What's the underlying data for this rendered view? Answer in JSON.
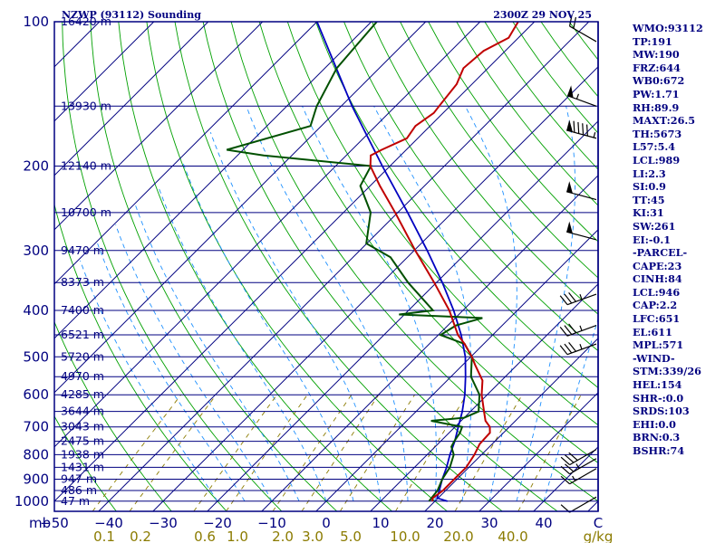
{
  "header": {
    "station": "NZWP (93112) Sounding",
    "time": "2300Z 29 NOV 25"
  },
  "indices": [
    "WMO:93112",
    "TP:191",
    "MW:190",
    "FRZ:644",
    "WB0:672",
    "PW:1.71",
    "RH:89.9",
    "MAXT:26.5",
    "TH:5673",
    "L57:5.4",
    "LCL:989",
    "LI:2.3",
    "SI:0.9",
    "TT:45",
    "KI:31",
    "SW:261",
    "EI:-0.1",
    "-PARCEL-",
    "CAPE:23",
    "CINH:84",
    "LCL:946",
    "CAP:2.2",
    "LFC:651",
    "EL:611",
    "MPL:571",
    "-WIND-",
    "STM:339/26",
    "HEL:154",
    "SHR-:0.0",
    "SRDS:103",
    "EHI:0.0",
    "BRN:0.3",
    "BSHR:74"
  ],
  "colors": {
    "frame": "#000080",
    "isobar": "#000080",
    "isotherm": "#000080",
    "dry_adiabat": "#00a000",
    "moist_adiabat": "#1e90ff",
    "mixing_ratio": "#8b7b00",
    "temperature": "#c00000",
    "dewpoint": "#005000",
    "parcel": "#0000c0",
    "barb": "#000000"
  },
  "chart_data": {
    "type": "skew-t log-p sounding",
    "title": "NZWP (93112) Sounding 2300Z 29 NOV 25",
    "pressure_unit": "mb",
    "temperature_unit": "C",
    "mixing_ratio_unit": "g/kg",
    "p_top": 100,
    "p_bottom": 1050,
    "t_range": [
      -50,
      50
    ],
    "pressure_labels": [
      100,
      200,
      300,
      400,
      500,
      600,
      700,
      800,
      900,
      1000
    ],
    "temperature_ticks": [
      -50,
      -40,
      -30,
      -20,
      -10,
      0,
      10,
      20,
      30,
      40,
      50
    ],
    "temperature_tick_labels": [
      "−50",
      "−40",
      "−30",
      "−20",
      "−10",
      "0",
      "10",
      "20",
      "30",
      "40",
      "C"
    ],
    "xlabel_left": "mb",
    "mixing_ratio_labels": [
      "0.1",
      "0.2",
      "0.6",
      "1.0",
      "2.0",
      "3.0",
      "5.0",
      "10.0",
      "20.0",
      "40.0",
      "g/kg"
    ],
    "mixing_ratio_values": [
      0.1,
      0.2,
      0.6,
      1.0,
      2.0,
      3.0,
      5.0,
      10.0,
      20.0,
      40.0
    ],
    "heights": [
      {
        "p": 100,
        "label": "16420 m"
      },
      {
        "p": 150,
        "label": "13930 m"
      },
      {
        "p": 200,
        "label": "12140 m"
      },
      {
        "p": 250,
        "label": "10700 m"
      },
      {
        "p": 300,
        "label": "9470 m"
      },
      {
        "p": 350,
        "label": "8373 m"
      },
      {
        "p": 400,
        "label": "7400 m"
      },
      {
        "p": 450,
        "label": "6521 m"
      },
      {
        "p": 500,
        "label": "5720 m"
      },
      {
        "p": 550,
        "label": "4970 m"
      },
      {
        "p": 600,
        "label": "4285 m"
      },
      {
        "p": 650,
        "label": "3644 m"
      },
      {
        "p": 700,
        "label": "3043 m"
      },
      {
        "p": 750,
        "label": "2475 m"
      },
      {
        "p": 800,
        "label": "1938 m"
      },
      {
        "p": 850,
        "label": "1431 m"
      },
      {
        "p": 900,
        "label": "947 m"
      },
      {
        "p": 950,
        "label": "486 m"
      },
      {
        "p": 1000,
        "label": "47 m"
      }
    ],
    "temperature_profile": [
      {
        "p": 1000,
        "t": 19.5
      },
      {
        "p": 985,
        "t": 19.0
      },
      {
        "p": 950,
        "t": 19.5
      },
      {
        "p": 900,
        "t": 19.5
      },
      {
        "p": 850,
        "t": 19.5
      },
      {
        "p": 800,
        "t": 18.7
      },
      {
        "p": 760,
        "t": 17.7
      },
      {
        "p": 720,
        "t": 17.5
      },
      {
        "p": 700,
        "t": 16.4
      },
      {
        "p": 680,
        "t": 14.5
      },
      {
        "p": 650,
        "t": 12.5
      },
      {
        "p": 600,
        "t": 9.0
      },
      {
        "p": 560,
        "t": 6.5
      },
      {
        "p": 520,
        "t": 2.3
      },
      {
        "p": 500,
        "t": 0.2
      },
      {
        "p": 470,
        "t": -3.5
      },
      {
        "p": 450,
        "t": -6.4
      },
      {
        "p": 400,
        "t": -12.5
      },
      {
        "p": 350,
        "t": -20.4
      },
      {
        "p": 300,
        "t": -29.8
      },
      {
        "p": 250,
        "t": -40.5
      },
      {
        "p": 220,
        "t": -48.2
      },
      {
        "p": 200,
        "t": -53.6
      },
      {
        "p": 190,
        "t": -55.5
      },
      {
        "p": 185,
        "t": -54.5
      },
      {
        "p": 175,
        "t": -52.0
      },
      {
        "p": 165,
        "t": -52.7
      },
      {
        "p": 155,
        "t": -51.7
      },
      {
        "p": 150,
        "t": -52.0
      },
      {
        "p": 135,
        "t": -52.8
      },
      {
        "p": 125,
        "t": -54.5
      },
      {
        "p": 115,
        "t": -54.0
      },
      {
        "p": 108,
        "t": -51.8
      },
      {
        "p": 100,
        "t": -53.0
      }
    ],
    "dewpoint_profile": [
      {
        "p": 1000,
        "td": 18.9
      },
      {
        "p": 950,
        "td": 18.5
      },
      {
        "p": 900,
        "td": 17.3
      },
      {
        "p": 850,
        "td": 16.5
      },
      {
        "p": 800,
        "td": 14.9
      },
      {
        "p": 770,
        "td": 13.0
      },
      {
        "p": 750,
        "td": 12.5
      },
      {
        "p": 720,
        "td": 12.0
      },
      {
        "p": 700,
        "td": 11.3
      },
      {
        "p": 680,
        "td": 4.5
      },
      {
        "p": 670,
        "td": 10.0
      },
      {
        "p": 650,
        "td": 11.5
      },
      {
        "p": 600,
        "td": 8.6
      },
      {
        "p": 550,
        "td": 3.7
      },
      {
        "p": 500,
        "td": 0.2
      },
      {
        "p": 470,
        "td": -3.5
      },
      {
        "p": 450,
        "td": -9.6
      },
      {
        "p": 430,
        "td": -8.5
      },
      {
        "p": 415,
        "td": -5.0
      },
      {
        "p": 408,
        "td": -21.0
      },
      {
        "p": 400,
        "td": -15.5
      },
      {
        "p": 350,
        "td": -25.2
      },
      {
        "p": 310,
        "td": -33.1
      },
      {
        "p": 290,
        "td": -40.1
      },
      {
        "p": 250,
        "td": -45.0
      },
      {
        "p": 220,
        "td": -51.8
      },
      {
        "p": 200,
        "td": -53.5
      },
      {
        "p": 190,
        "td": -75.2
      },
      {
        "p": 185,
        "td": -83.0
      },
      {
        "p": 165,
        "td": -72.0
      },
      {
        "p": 150,
        "td": -74.5
      },
      {
        "p": 125,
        "td": -77.8
      },
      {
        "p": 100,
        "td": -79.0
      }
    ],
    "parcel_profile": [
      {
        "p": 1000,
        "t": 22.3
      },
      {
        "p": 985,
        "t": 19.8
      },
      {
        "p": 946,
        "t": 18.7
      },
      {
        "p": 900,
        "t": 17.3
      },
      {
        "p": 850,
        "t": 15.9
      },
      {
        "p": 800,
        "t": 14.2
      },
      {
        "p": 750,
        "t": 12.6
      },
      {
        "p": 700,
        "t": 10.6
      },
      {
        "p": 650,
        "t": 8.5
      },
      {
        "p": 600,
        "t": 5.9
      },
      {
        "p": 550,
        "t": 2.7
      },
      {
        "p": 500,
        "t": -1.0
      },
      {
        "p": 450,
        "t": -5.8
      },
      {
        "p": 400,
        "t": -11.7
      },
      {
        "p": 350,
        "t": -18.9
      },
      {
        "p": 300,
        "t": -27.6
      },
      {
        "p": 250,
        "t": -38.2
      },
      {
        "p": 200,
        "t": -51.4
      },
      {
        "p": 150,
        "t": -68.0
      },
      {
        "p": 100,
        "t": -90.0
      }
    ],
    "wind_barbs": [
      {
        "p": 110,
        "dir": 300,
        "kt": 20
      },
      {
        "p": 150,
        "dir": 290,
        "kt": 55
      },
      {
        "p": 175,
        "dir": 285,
        "kt": 95
      },
      {
        "p": 235,
        "dir": 285,
        "kt": 50
      },
      {
        "p": 285,
        "dir": 285,
        "kt": 50
      },
      {
        "p": 370,
        "dir": 250,
        "kt": 35
      },
      {
        "p": 430,
        "dir": 250,
        "kt": 35
      },
      {
        "p": 470,
        "dir": 250,
        "kt": 35
      },
      {
        "p": 780,
        "dir": 240,
        "kt": 30
      },
      {
        "p": 815,
        "dir": 240,
        "kt": 25
      },
      {
        "p": 855,
        "dir": 240,
        "kt": 15
      },
      {
        "p": 980,
        "dir": 240,
        "kt": 10
      }
    ]
  }
}
